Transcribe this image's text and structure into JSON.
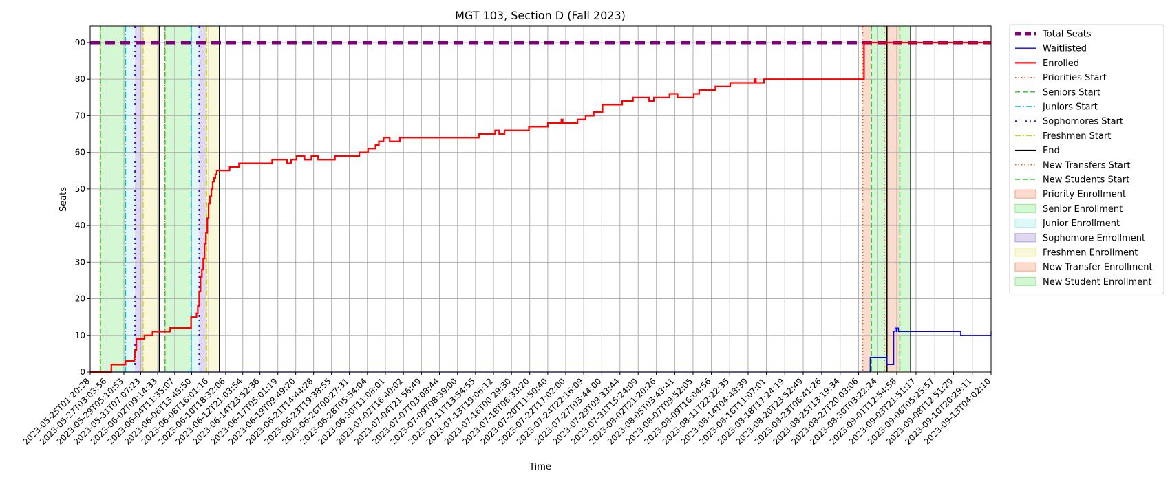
{
  "chart_data": {
    "type": "line",
    "title": "MGT 103, Section D (Fall 2023)",
    "xlabel": "Time",
    "ylabel": "Seats",
    "ylim": [
      0,
      94.5
    ],
    "y_ticks": [
      0,
      10,
      20,
      30,
      40,
      50,
      60,
      70,
      80,
      90
    ],
    "x_domain": [
      "2023-05-25T01:20:28",
      "2023-09-13T04:02:10"
    ],
    "x_ticks": [
      "2023-05-25T01:20:28",
      "2023-05-27T03:03:56",
      "2023-05-29T05:10:53",
      "2023-05-31T07:07:23",
      "2023-06-02T09:14:33",
      "2023-06-04T11:35:07",
      "2023-06-06T13:45:50",
      "2023-06-08T16:01:16",
      "2023-06-10T18:32:06",
      "2023-06-12T21:03:54",
      "2023-06-14T23:52:36",
      "2023-06-17T05:01:19",
      "2023-06-19T09:49:20",
      "2023-06-21T14:44:28",
      "2023-06-23T19:38:55",
      "2023-06-26T00:27:31",
      "2023-06-28T05:54:04",
      "2023-06-30T11:08:01",
      "2023-07-02T16:40:02",
      "2023-07-04T21:56:49",
      "2023-07-07T03:08:44",
      "2023-07-09T08:39:00",
      "2023-07-11T13:54:55",
      "2023-07-13T19:06:12",
      "2023-07-16T00:29:30",
      "2023-07-18T06:33:20",
      "2023-07-20T11:50:40",
      "2023-07-22T17:02:00",
      "2023-07-24T22:16:09",
      "2023-07-27T03:44:00",
      "2023-07-29T09:33:44",
      "2023-07-31T15:24:09",
      "2023-08-02T21:20:26",
      "2023-08-05T03:43:41",
      "2023-08-07T09:52:05",
      "2023-08-09T16:04:56",
      "2023-08-11T22:22:35",
      "2023-08-14T04:48:39",
      "2023-08-16T11:07:01",
      "2023-08-18T17:24:19",
      "2023-08-20T23:52:49",
      "2023-08-23T06:41:26",
      "2023-08-25T13:19:34",
      "2023-08-27T20:03:06",
      "2023-08-30T03:22:24",
      "2023-09-01T12:54:58",
      "2023-09-03T21:51:17",
      "2023-09-06T05:25:57",
      "2023-09-08T12:51:29",
      "2023-09-10T20:29:11",
      "2023-09-13T04:02:10"
    ],
    "series": [
      {
        "name": "Total Seats",
        "color": "#800080",
        "style": "dashed-thick",
        "x": [
          "2023-05-25T01:20:28",
          "2023-09-13T04:02:10"
        ],
        "y": [
          90,
          90
        ]
      },
      {
        "name": "Waitlisted",
        "color": "#0000ff",
        "style": "solid-thin",
        "x": [
          "2023-05-25T01:20:28",
          "2023-08-29T00:00:00",
          "2023-08-29T06:00:00",
          "2023-08-31T00:00:00",
          "2023-08-31T08:00:00",
          "2023-08-31T22:00:00",
          "2023-09-01T04:00:00",
          "2023-09-01T08:00:00",
          "2023-09-01T12:00:00",
          "2023-09-01T14:00:00",
          "2023-09-01T18:00:00",
          "2023-09-09T01:00:00",
          "2023-09-09T10:00:00",
          "2023-09-13T04:02:10"
        ],
        "y": [
          0,
          0,
          4,
          4,
          2,
          2,
          11,
          12,
          11,
          12,
          11,
          11,
          10,
          11
        ]
      },
      {
        "name": "Enrolled",
        "color": "#ff0000",
        "style": "solid-thick",
        "x": [
          "2023-05-25T01:20:28",
          "2023-05-26T07:00:00",
          "2023-05-27T16:00:00",
          "2023-05-28T16:00:00",
          "2023-05-29T10:00:00",
          "2023-05-30T10:00:00",
          "2023-05-30T12:00:00",
          "2023-05-30T14:00:00",
          "2023-05-30T18:00:00",
          "2023-05-31T00:00:00",
          "2023-05-31T18:00:00",
          "2023-06-01T18:00:00",
          "2023-06-03T06:00:00",
          "2023-06-03T22:00:00",
          "2023-06-05T22:00:00",
          "2023-06-06T12:00:00",
          "2023-06-06T20:00:00",
          "2023-06-07T04:00:00",
          "2023-06-07T08:00:00",
          "2023-06-07T12:00:00",
          "2023-06-07T16:00:00",
          "2023-06-07T20:00:00",
          "2023-06-08T00:00:00",
          "2023-06-08T04:00:00",
          "2023-06-08T08:00:00",
          "2023-06-08T12:00:00",
          "2023-06-08T16:00:00",
          "2023-06-08T20:00:00",
          "2023-06-09T00:00:00",
          "2023-06-09T04:00:00",
          "2023-06-09T08:00:00",
          "2023-06-09T12:00:00",
          "2023-06-09T16:00:00",
          "2023-06-10T00:00:00",
          "2023-06-11T06:00:00",
          "2023-06-12T10:00:00",
          "2023-06-15T00:00:00",
          "2023-06-16T12:00:00",
          "2023-06-17T20:00:00",
          "2023-06-18T08:00:00",
          "2023-06-18T20:00:00",
          "2023-06-19T12:00:00",
          "2023-06-20T12:00:00",
          "2023-06-21T08:00:00",
          "2023-06-22T04:00:00",
          "2023-06-24T06:00:00",
          "2023-06-27T06:00:00",
          "2023-06-28T08:00:00",
          "2023-06-29T06:00:00",
          "2023-06-29T16:00:00",
          "2023-06-30T06:00:00",
          "2023-07-01T00:00:00",
          "2023-07-02T06:00:00",
          "2023-07-02T06:05:00",
          "2023-07-04T06:00:00",
          "2023-07-05T04:00:00",
          "2023-07-05T06:00:00",
          "2023-07-08T06:00:00",
          "2023-07-12T00:00:00",
          "2023-07-14T00:00:00",
          "2023-07-14T12:00:00",
          "2023-07-15T04:00:00",
          "2023-07-15T12:00:00",
          "2023-07-18T04:00:00",
          "2023-07-18T12:00:00",
          "2023-07-20T12:00:00",
          "2023-07-22T00:00:00",
          "2023-07-22T04:00:00",
          "2023-07-22T08:00:00",
          "2023-07-24T04:00:00",
          "2023-07-25T04:00:00",
          "2023-07-26T04:00:00",
          "2023-07-27T06:00:00",
          "2023-07-27T06:05:00",
          "2023-07-27T22:00:00",
          "2023-07-29T16:00:00",
          "2023-07-31T00:00:00",
          "2023-07-31T12:00:00",
          "2023-08-02T00:00:00",
          "2023-08-02T14:00:00",
          "2023-08-04T04:00:00",
          "2023-08-04T12:00:00",
          "2023-08-05T12:00:00",
          "2023-08-07T12:00:00",
          "2023-08-08T04:00:00",
          "2023-08-08T10:00:00",
          "2023-08-10T04:00:00",
          "2023-08-12T00:00:00",
          "2023-08-12T00:05:00",
          "2023-08-15T00:00:00",
          "2023-08-15T04:00:00",
          "2023-08-16T04:00:00",
          "2023-08-17T08:00:00",
          "2023-08-17T20:00:00",
          "2023-08-18T04:00:00",
          "2023-08-28T08:00:00",
          "2023-08-28T12:00:00",
          "2023-09-13T04:02:10"
        ],
        "y": [
          0,
          0,
          2,
          2,
          3,
          3,
          4,
          6,
          9,
          9,
          10,
          11,
          11,
          12,
          12,
          15,
          15,
          16,
          18,
          22,
          26,
          28,
          31,
          35,
          38,
          42,
          46,
          48,
          50,
          52,
          53,
          54,
          55,
          55,
          56,
          57,
          57,
          58,
          58,
          57,
          58,
          59,
          58,
          59,
          58,
          59,
          60,
          61,
          62,
          63,
          64,
          63,
          63,
          64,
          64,
          64,
          64,
          64,
          65,
          66,
          65,
          66,
          66,
          67,
          67,
          68,
          68,
          69,
          68,
          69,
          70,
          71,
          72,
          73,
          73,
          74,
          75,
          75,
          74,
          75,
          75,
          76,
          75,
          76,
          77,
          77,
          78,
          79,
          79,
          80,
          79,
          80,
          80,
          80,
          80,
          80,
          90,
          90
        ]
      }
    ],
    "vertical_lines": [
      {
        "name": "Priorities Start",
        "color": "#ff4500",
        "style": "dotted",
        "x": [
          "2023-05-26T07:00:00",
          "2023-06-03T06:00:00",
          "2023-08-28T08:00:00"
        ]
      },
      {
        "name": "Seniors Start",
        "color": "#32cd32",
        "style": "dashed",
        "x": [
          "2023-05-26T08:00:00",
          "2023-06-03T07:00:00"
        ]
      },
      {
        "name": "Juniors Start",
        "color": "#00bcd4",
        "style": "dashdot",
        "x": [
          "2023-05-29T10:00:00",
          "2023-06-06T12:00:00"
        ]
      },
      {
        "name": "Sophomores Start",
        "color": "#4b00d4",
        "style": "dashdot-sparse",
        "x": [
          "2023-05-30T14:00:00",
          "2023-06-07T12:00:00"
        ]
      },
      {
        "name": "Freshmen Start",
        "color": "#d4d400",
        "style": "dashdot",
        "x": [
          "2023-05-31T14:00:00",
          "2023-06-08T10:00:00"
        ]
      },
      {
        "name": "End",
        "color": "#000000",
        "style": "solid",
        "x": [
          "2023-06-02T14:00:00",
          "2023-06-10T00:00:00",
          "2023-08-31T08:00:00",
          "2023-09-03T06:00:00"
        ]
      },
      {
        "name": "New Transfers Start",
        "color": "#ff4500",
        "style": "dotted",
        "x": [
          "2023-08-28T08:00:00",
          "2023-08-31T00:00:00"
        ]
      },
      {
        "name": "New Students Start",
        "color": "#32cd32",
        "style": "dashed",
        "x": [
          "2023-08-29T10:00:00",
          "2023-09-01T22:00:00"
        ]
      }
    ],
    "shaded_spans": [
      {
        "name": "Priority Enrollment",
        "color": "#f4a582",
        "x": [
          [
            "2023-05-26T07:00:00",
            "2023-05-26T08:00:00"
          ],
          [
            "2023-06-03T06:00:00",
            "2023-06-03T07:00:00"
          ]
        ]
      },
      {
        "name": "Senior Enrollment",
        "color": "#90ee90",
        "x": [
          [
            "2023-05-26T08:00:00",
            "2023-05-29T10:00:00"
          ],
          [
            "2023-06-03T07:00:00",
            "2023-06-06T12:00:00"
          ]
        ]
      },
      {
        "name": "Junior Enrollment",
        "color": "#afeeee",
        "x": [
          [
            "2023-05-29T10:00:00",
            "2023-05-30T14:00:00"
          ],
          [
            "2023-06-06T12:00:00",
            "2023-06-07T12:00:00"
          ]
        ]
      },
      {
        "name": "Sophomore Enrollment",
        "color": "#b19cd9",
        "x": [
          [
            "2023-05-30T14:00:00",
            "2023-05-31T14:00:00"
          ],
          [
            "2023-06-07T12:00:00",
            "2023-06-08T10:00:00"
          ]
        ]
      },
      {
        "name": "Freshmen Enrollment",
        "color": "#f0f0a0",
        "x": [
          [
            "2023-05-31T14:00:00",
            "2023-06-02T14:00:00"
          ],
          [
            "2023-06-08T10:00:00",
            "2023-06-10T00:00:00"
          ]
        ]
      },
      {
        "name": "New Transfer Enrollment",
        "color": "#f4a582",
        "x": [
          [
            "2023-08-28T08:00:00",
            "2023-08-29T10:00:00"
          ],
          [
            "2023-08-31T08:00:00",
            "2023-09-01T22:00:00"
          ]
        ]
      },
      {
        "name": "New Student Enrollment",
        "color": "#90ee90",
        "x": [
          [
            "2023-08-29T10:00:00",
            "2023-08-31T08:00:00"
          ],
          [
            "2023-09-01T22:00:00",
            "2023-09-03T06:00:00"
          ]
        ]
      }
    ],
    "legend": {
      "placement": "outside-right-top",
      "entries": [
        {
          "label": "Total Seats",
          "kind": "line",
          "color": "#800080",
          "style": "dashed-thick"
        },
        {
          "label": "Waitlisted",
          "kind": "line",
          "color": "#0000ff",
          "style": "solid-thin"
        },
        {
          "label": "Enrolled",
          "kind": "line",
          "color": "#ff0000",
          "style": "solid-thick"
        },
        {
          "label": "Priorities Start",
          "kind": "line",
          "color": "#ff4500",
          "style": "dotted"
        },
        {
          "label": "Seniors Start",
          "kind": "line",
          "color": "#32cd32",
          "style": "dashed"
        },
        {
          "label": "Juniors Start",
          "kind": "line",
          "color": "#00bcd4",
          "style": "dashdot"
        },
        {
          "label": "Sophomores Start",
          "kind": "line",
          "color": "#4b00d4",
          "style": "dashdot-sparse"
        },
        {
          "label": "Freshmen Start",
          "kind": "line",
          "color": "#d4d400",
          "style": "dashdot"
        },
        {
          "label": "End",
          "kind": "line",
          "color": "#000000",
          "style": "solid"
        },
        {
          "label": "New Transfers Start",
          "kind": "line",
          "color": "#ff4500",
          "style": "dotted"
        },
        {
          "label": "New Students Start",
          "kind": "line",
          "color": "#32cd32",
          "style": "dashed"
        },
        {
          "label": "Priority Enrollment",
          "kind": "patch",
          "color": "#f4a582"
        },
        {
          "label": "Senior Enrollment",
          "kind": "patch",
          "color": "#90ee90"
        },
        {
          "label": "Junior Enrollment",
          "kind": "patch",
          "color": "#afeeee"
        },
        {
          "label": "Sophomore Enrollment",
          "kind": "patch",
          "color": "#b19cd9"
        },
        {
          "label": "Freshmen Enrollment",
          "kind": "patch",
          "color": "#f0f0a0"
        },
        {
          "label": "New Transfer Enrollment",
          "kind": "patch",
          "color": "#f4a582"
        },
        {
          "label": "New Student Enrollment",
          "kind": "patch",
          "color": "#90ee90"
        }
      ]
    },
    "grid": true
  }
}
